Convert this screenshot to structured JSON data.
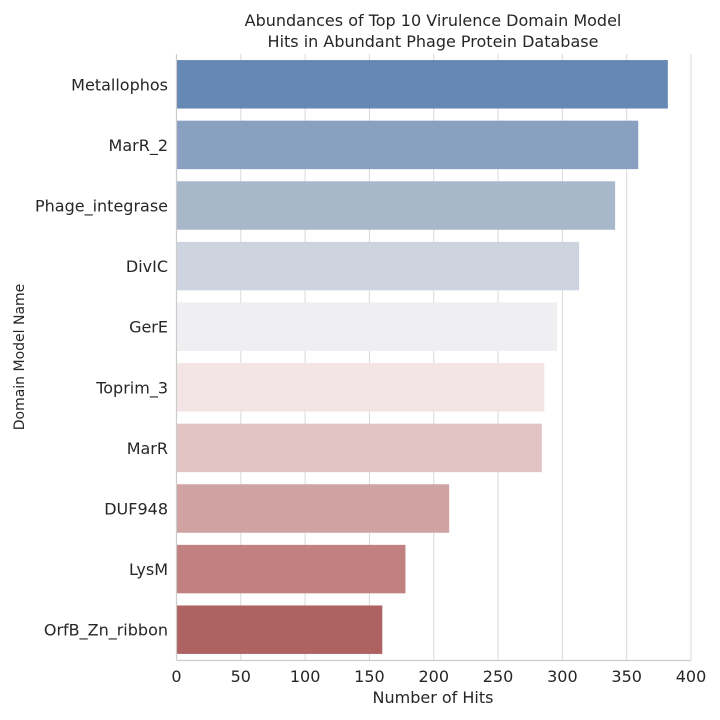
{
  "chart_data": {
    "type": "bar",
    "orientation": "horizontal",
    "title": "Abundances of Top 10 Virulence Domain Model\nHits in Abundant Phage Protein Database",
    "xlabel": "Number of Hits",
    "ylabel": "Domain Model Name",
    "categories": [
      "Metallophos",
      "MarR_2",
      "Phage_integrase",
      "DivIC",
      "GerE",
      "Toprim_3",
      "MarR",
      "DUF948",
      "LysM",
      "OrfB_Zn_ribbon"
    ],
    "values": [
      382,
      359,
      341,
      313,
      296,
      286,
      284,
      212,
      178,
      160
    ],
    "colors": [
      "#6688b5",
      "#8aa0c0",
      "#a9b7cb",
      "#cdd3df",
      "#efeff2",
      "#f3e5e5",
      "#e3c4c5",
      "#d0a3a3",
      "#c18181",
      "#af6262"
    ],
    "xlim": [
      0,
      400
    ],
    "xticks": [
      0,
      50,
      100,
      150,
      200,
      250,
      300,
      350,
      400
    ],
    "grid": "vertical"
  }
}
